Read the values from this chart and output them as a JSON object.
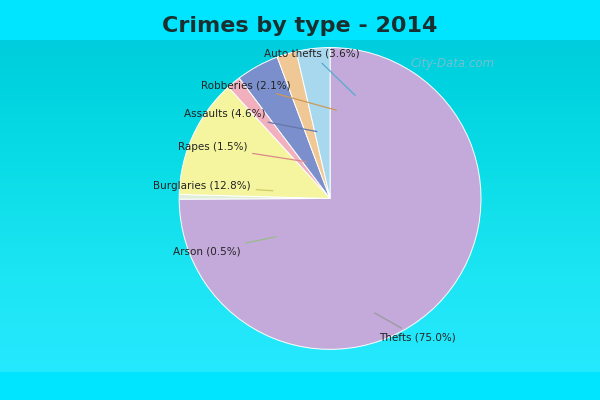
{
  "title": "Crimes by type - 2014",
  "title_fontsize": 16,
  "title_fontweight": "bold",
  "slices": [
    {
      "label": "Thefts (75.0%)",
      "value": 75.0,
      "color": "#C4AADB"
    },
    {
      "label": "Arson (0.5%)",
      "value": 0.5,
      "color": "#E0EDD8"
    },
    {
      "label": "Burglaries (12.8%)",
      "value": 12.8,
      "color": "#F5F5A0"
    },
    {
      "label": "Rapes (1.5%)",
      "value": 1.5,
      "color": "#F2B0BE"
    },
    {
      "label": "Assaults (4.6%)",
      "value": 4.6,
      "color": "#7B8FCC"
    },
    {
      "label": "Robberies (2.1%)",
      "value": 2.1,
      "color": "#F0C896"
    },
    {
      "label": "Auto thefts (3.6%)",
      "value": 3.6,
      "color": "#A8D8EE"
    }
  ],
  "header_color": "#00E5FF",
  "bg_top_color": "#D8EEE8",
  "bg_bot_color": "#C0DDD0",
  "footer_color": "#00E5FF",
  "watermark": "City-Data.com",
  "startangle": 90
}
